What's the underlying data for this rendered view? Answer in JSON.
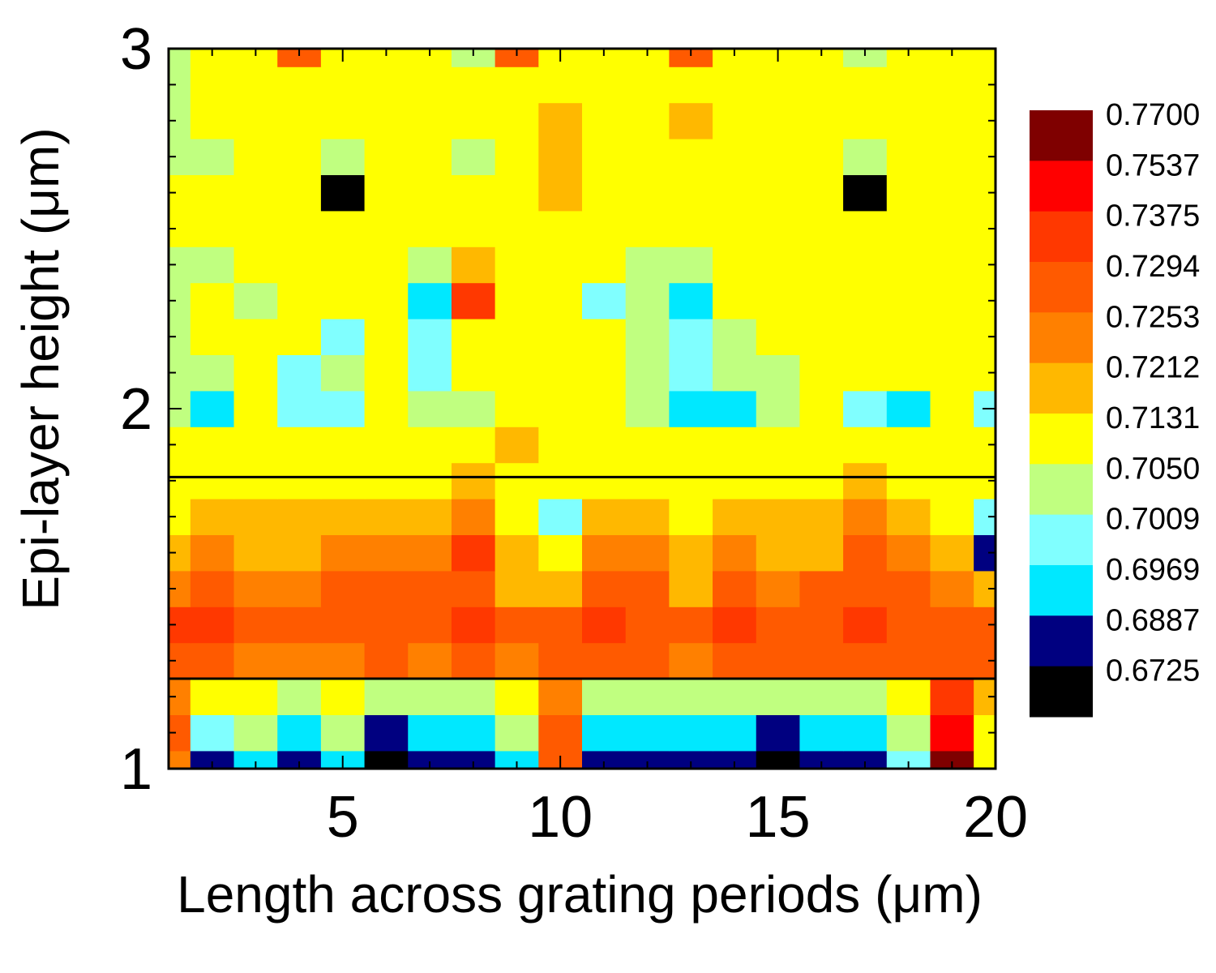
{
  "chart_data": {
    "type": "heatmap",
    "xlabel": "Length across grating periods (μm)",
    "ylabel": "Epi-layer height  (μm)",
    "xlim": [
      1,
      20
    ],
    "ylim": [
      1,
      3
    ],
    "x_ticks": [
      5,
      10,
      15,
      20
    ],
    "y_ticks": [
      1,
      2,
      3
    ],
    "colorbar": {
      "levels": [
        "0.7700",
        "0.7537",
        "0.7375",
        "0.7294",
        "0.7253",
        "0.7212",
        "0.7131",
        "0.7050",
        "0.7009",
        "0.6969",
        "0.6887",
        "0.6725"
      ],
      "colors": [
        "#7f0000",
        "#ff0000",
        "#ff3800",
        "#ff5a00",
        "#ff8000",
        "#ffb800",
        "#ffff00",
        "#c0ff80",
        "#80ffff",
        "#00e8ff",
        "#000080",
        "#000000"
      ]
    },
    "horizontal_lines_y": [
      1.81,
      1.25
    ],
    "grid": false,
    "legend": "colorbar right",
    "x": [
      1,
      2,
      3,
      4,
      5,
      6,
      7,
      8,
      9,
      10,
      11,
      12,
      13,
      14,
      15,
      16,
      17,
      18,
      19,
      20
    ],
    "y": [
      1.0,
      1.1,
      1.2,
      1.3,
      1.4,
      1.5,
      1.6,
      1.7,
      1.8,
      1.9,
      2.0,
      2.1,
      2.2,
      2.3,
      2.4,
      2.5,
      2.6,
      2.7,
      2.8,
      2.9,
      3.0
    ],
    "z": [
      [
        0.7253,
        0.6887,
        0.6969,
        0.6887,
        0.6969,
        0.6725,
        0.6887,
        0.6887,
        0.6969,
        0.7294,
        0.6887,
        0.6887,
        0.6887,
        0.6887,
        0.6725,
        0.6887,
        0.6887,
        0.7009,
        0.77,
        0.7131
      ],
      [
        0.7294,
        0.7009,
        0.705,
        0.6969,
        0.705,
        0.6887,
        0.6969,
        0.6969,
        0.705,
        0.7294,
        0.6969,
        0.6969,
        0.6969,
        0.6969,
        0.6887,
        0.6969,
        0.6969,
        0.705,
        0.7537,
        0.7131
      ],
      [
        0.7253,
        0.7131,
        0.7131,
        0.705,
        0.7131,
        0.705,
        0.705,
        0.705,
        0.7131,
        0.7253,
        0.705,
        0.705,
        0.705,
        0.705,
        0.705,
        0.705,
        0.705,
        0.7131,
        0.7375,
        0.7212
      ],
      [
        0.7294,
        0.7294,
        0.7253,
        0.7253,
        0.7253,
        0.7294,
        0.7253,
        0.7294,
        0.7253,
        0.7294,
        0.7294,
        0.7294,
        0.7253,
        0.7294,
        0.7294,
        0.7294,
        0.7294,
        0.7294,
        0.7294,
        0.7294
      ],
      [
        0.7375,
        0.7375,
        0.7294,
        0.7294,
        0.7294,
        0.7294,
        0.7294,
        0.7375,
        0.7294,
        0.7294,
        0.7375,
        0.7294,
        0.7294,
        0.7375,
        0.7294,
        0.7294,
        0.7375,
        0.7294,
        0.7294,
        0.7294
      ],
      [
        0.7253,
        0.7294,
        0.7253,
        0.7253,
        0.7294,
        0.7294,
        0.7294,
        0.7294,
        0.7212,
        0.7212,
        0.7294,
        0.7294,
        0.7212,
        0.7294,
        0.7253,
        0.7294,
        0.7294,
        0.7294,
        0.7253,
        0.7212
      ],
      [
        0.7212,
        0.7253,
        0.7212,
        0.7212,
        0.7253,
        0.7253,
        0.7253,
        0.7375,
        0.7212,
        0.7131,
        0.7253,
        0.7253,
        0.7212,
        0.7253,
        0.7212,
        0.7212,
        0.7294,
        0.7253,
        0.7212,
        0.6887
      ],
      [
        0.7131,
        0.7212,
        0.7212,
        0.7212,
        0.7212,
        0.7212,
        0.7212,
        0.7253,
        0.7131,
        0.7009,
        0.7212,
        0.7212,
        0.7131,
        0.7212,
        0.7212,
        0.7212,
        0.7253,
        0.7212,
        0.7131,
        0.7009
      ],
      [
        0.7131,
        0.7131,
        0.7131,
        0.7131,
        0.7131,
        0.7131,
        0.7131,
        0.7212,
        0.7131,
        0.7131,
        0.7131,
        0.7131,
        0.7131,
        0.7131,
        0.7131,
        0.7131,
        0.7212,
        0.7131,
        0.7131,
        0.7131
      ],
      [
        0.7131,
        0.7131,
        0.7131,
        0.7131,
        0.7131,
        0.7131,
        0.7131,
        0.7131,
        0.7212,
        0.7131,
        0.7131,
        0.7131,
        0.7131,
        0.7131,
        0.7131,
        0.7131,
        0.7131,
        0.7131,
        0.7131,
        0.7131
      ],
      [
        0.705,
        0.6969,
        0.7131,
        0.7009,
        0.7009,
        0.7131,
        0.705,
        0.705,
        0.7131,
        0.7131,
        0.7131,
        0.705,
        0.6969,
        0.6969,
        0.705,
        0.7131,
        0.7009,
        0.6969,
        0.7131,
        0.7009
      ],
      [
        0.705,
        0.705,
        0.7131,
        0.7009,
        0.705,
        0.7131,
        0.7009,
        0.7131,
        0.7131,
        0.7131,
        0.7131,
        0.705,
        0.7009,
        0.705,
        0.705,
        0.7131,
        0.7131,
        0.7131,
        0.7131,
        0.7131
      ],
      [
        0.705,
        0.7131,
        0.7131,
        0.7131,
        0.7009,
        0.7131,
        0.7009,
        0.7131,
        0.7131,
        0.7131,
        0.7131,
        0.705,
        0.7009,
        0.705,
        0.7131,
        0.7131,
        0.7131,
        0.7131,
        0.7131,
        0.7131
      ],
      [
        0.705,
        0.7131,
        0.705,
        0.7131,
        0.7131,
        0.7131,
        0.6969,
        0.7375,
        0.7131,
        0.7131,
        0.7009,
        0.705,
        0.6969,
        0.7131,
        0.7131,
        0.7131,
        0.7131,
        0.7131,
        0.7131,
        0.7131
      ],
      [
        0.705,
        0.705,
        0.7131,
        0.7131,
        0.7131,
        0.7131,
        0.705,
        0.7212,
        0.7131,
        0.7131,
        0.7131,
        0.705,
        0.705,
        0.7131,
        0.7131,
        0.7131,
        0.7131,
        0.7131,
        0.7131,
        0.7131
      ],
      [
        0.7131,
        0.7131,
        0.7131,
        0.7131,
        0.7131,
        0.7131,
        0.7131,
        0.7131,
        0.7131,
        0.7131,
        0.7131,
        0.7131,
        0.7131,
        0.7131,
        0.7131,
        0.7131,
        0.7131,
        0.7131,
        0.7131,
        0.7131
      ],
      [
        0.7131,
        0.7131,
        0.7131,
        0.7131,
        0.6725,
        0.7131,
        0.7131,
        0.7131,
        0.7131,
        0.7212,
        0.7131,
        0.7131,
        0.7131,
        0.7131,
        0.7131,
        0.7131,
        0.6725,
        0.7131,
        0.7131,
        0.7131
      ],
      [
        0.705,
        0.705,
        0.7131,
        0.7131,
        0.705,
        0.7131,
        0.7131,
        0.705,
        0.7131,
        0.7212,
        0.7131,
        0.7131,
        0.7131,
        0.7131,
        0.7131,
        0.7131,
        0.705,
        0.7131,
        0.7131,
        0.7131
      ],
      [
        0.705,
        0.7131,
        0.7131,
        0.7131,
        0.7131,
        0.7131,
        0.7131,
        0.7131,
        0.7131,
        0.7212,
        0.7131,
        0.7131,
        0.7212,
        0.7131,
        0.7131,
        0.7131,
        0.7131,
        0.7131,
        0.7131,
        0.7131
      ],
      [
        0.705,
        0.7131,
        0.7131,
        0.7131,
        0.7131,
        0.7131,
        0.7131,
        0.7131,
        0.7131,
        0.7131,
        0.7131,
        0.7131,
        0.7131,
        0.7131,
        0.7131,
        0.7131,
        0.7131,
        0.7131,
        0.7131,
        0.7131
      ],
      [
        0.705,
        0.7131,
        0.7131,
        0.7294,
        0.7131,
        0.7131,
        0.7131,
        0.705,
        0.7294,
        0.7131,
        0.7131,
        0.7131,
        0.7294,
        0.7131,
        0.7131,
        0.7131,
        0.705,
        0.7131,
        0.7131,
        0.7131
      ]
    ]
  }
}
